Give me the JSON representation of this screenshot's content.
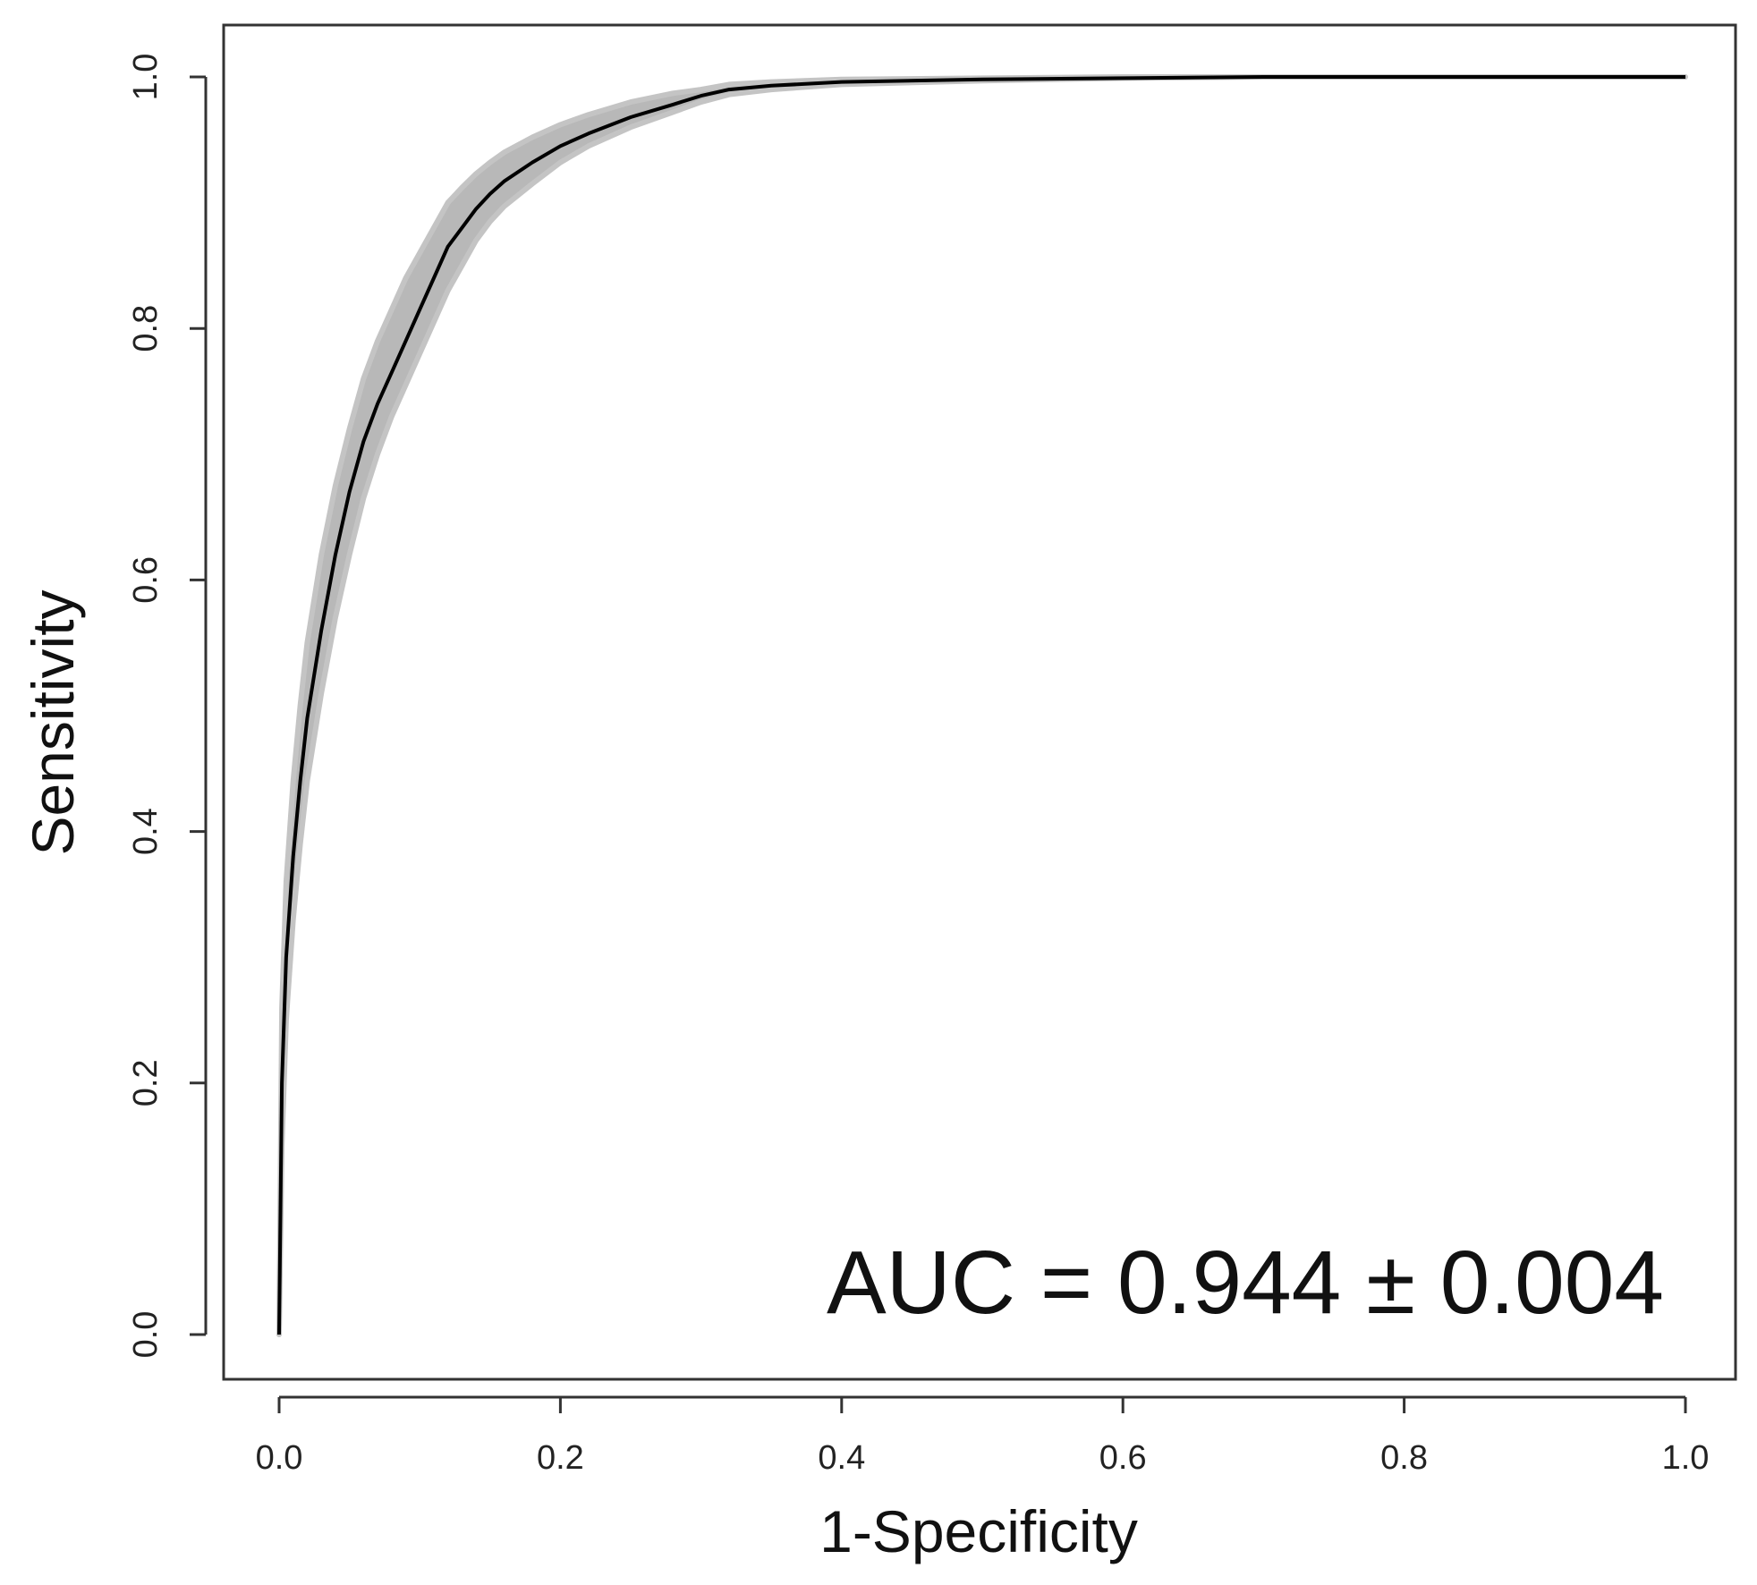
{
  "chart_data": {
    "type": "line",
    "title": "",
    "xlabel": "1-Specificity",
    "ylabel": "Sensitivity",
    "xlim": [
      0,
      1
    ],
    "ylim": [
      0,
      1
    ],
    "x_ticks": [
      "0.0",
      "0.2",
      "0.4",
      "0.6",
      "0.8",
      "1.0"
    ],
    "y_ticks": [
      "0.0",
      "0.2",
      "0.4",
      "0.6",
      "0.8",
      "1.0"
    ],
    "grid": false,
    "legend": "none",
    "annotation": "AUC = 0.944 ± 0.004",
    "series": [
      {
        "role": "mean-roc",
        "color": "#000000",
        "x": [
          0.0,
          0.002,
          0.005,
          0.01,
          0.015,
          0.02,
          0.03,
          0.04,
          0.05,
          0.06,
          0.07,
          0.08,
          0.09,
          0.1,
          0.11,
          0.12,
          0.13,
          0.14,
          0.15,
          0.16,
          0.18,
          0.2,
          0.22,
          0.25,
          0.28,
          0.3,
          0.32,
          0.35,
          0.4,
          0.5,
          0.6,
          0.7,
          0.8,
          0.9,
          1.0
        ],
        "y": [
          0.0,
          0.2,
          0.3,
          0.38,
          0.44,
          0.49,
          0.56,
          0.62,
          0.67,
          0.71,
          0.74,
          0.765,
          0.79,
          0.815,
          0.84,
          0.865,
          0.88,
          0.895,
          0.907,
          0.917,
          0.932,
          0.945,
          0.955,
          0.968,
          0.978,
          0.985,
          0.99,
          0.993,
          0.996,
          0.998,
          0.999,
          1.0,
          1.0,
          1.0,
          1.0
        ]
      }
    ],
    "band": {
      "role": "bootstrap-roc-curves",
      "color": "#b8b8b8",
      "x": [
        0.0,
        0.002,
        0.005,
        0.01,
        0.015,
        0.02,
        0.03,
        0.04,
        0.05,
        0.06,
        0.07,
        0.08,
        0.09,
        0.1,
        0.11,
        0.12,
        0.13,
        0.14,
        0.15,
        0.16,
        0.18,
        0.2,
        0.22,
        0.25,
        0.28,
        0.3,
        0.32,
        0.35,
        0.4,
        0.5,
        0.6,
        0.7,
        0.8,
        0.9,
        1.0
      ],
      "lower": [
        0.0,
        0.15,
        0.25,
        0.33,
        0.39,
        0.44,
        0.51,
        0.57,
        0.62,
        0.665,
        0.7,
        0.73,
        0.755,
        0.78,
        0.805,
        0.83,
        0.85,
        0.87,
        0.885,
        0.897,
        0.915,
        0.932,
        0.945,
        0.96,
        0.972,
        0.98,
        0.986,
        0.99,
        0.994,
        0.997,
        0.999,
        1.0,
        1.0,
        1.0,
        1.0
      ],
      "upper": [
        0.0,
        0.26,
        0.36,
        0.44,
        0.5,
        0.55,
        0.62,
        0.675,
        0.72,
        0.76,
        0.79,
        0.815,
        0.84,
        0.86,
        0.88,
        0.9,
        0.912,
        0.923,
        0.932,
        0.94,
        0.952,
        0.962,
        0.97,
        0.98,
        0.987,
        0.99,
        0.994,
        0.996,
        0.998,
        0.999,
        1.0,
        1.0,
        1.0,
        1.0,
        1.0
      ]
    }
  }
}
